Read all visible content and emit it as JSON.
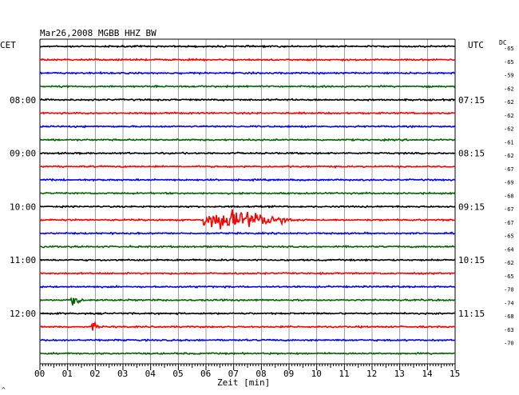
{
  "header": {
    "title": "Mar26,2008   MGBB HHZ BW",
    "left_zone": "CET",
    "right_zone": "UTC",
    "dc_label": "DC"
  },
  "footer": {
    "xlabel": "Zeit [min]",
    "corner_mark": "^"
  },
  "colors": {
    "black": "#000000",
    "red": "#ff0000",
    "blue": "#0000ff",
    "green": "#006400",
    "grid": "#808080",
    "frame": "#000000"
  },
  "chart_data": {
    "type": "line",
    "title": "Mar26,2008   MGBB HHZ BW",
    "xlabel": "Zeit [min]",
    "xlim": [
      0,
      15
    ],
    "x_ticks": [
      "00",
      "01",
      "02",
      "03",
      "04",
      "05",
      "06",
      "07",
      "08",
      "09",
      "10",
      "11",
      "12",
      "13",
      "14",
      "15"
    ],
    "grid": true,
    "trace_color_cycle": [
      "black",
      "red",
      "blue",
      "green"
    ],
    "rows": 24,
    "left_time_labels": [
      {
        "row": 4,
        "label": "08:00"
      },
      {
        "row": 8,
        "label": "09:00"
      },
      {
        "row": 12,
        "label": "10:00"
      },
      {
        "row": 16,
        "label": "11:00"
      },
      {
        "row": 20,
        "label": "12:00"
      }
    ],
    "right_time_labels": [
      {
        "row": 4,
        "label": "07:15"
      },
      {
        "row": 8,
        "label": "08:15"
      },
      {
        "row": 12,
        "label": "09:15"
      },
      {
        "row": 16,
        "label": "10:15"
      },
      {
        "row": 20,
        "label": "11:15"
      }
    ],
    "dc_values": [
      -65,
      -65,
      -59,
      -62,
      -62,
      -62,
      -62,
      -61,
      -62,
      -67,
      -69,
      -68,
      -67,
      -67,
      -65,
      -64,
      -62,
      -65,
      -70,
      -74,
      -68,
      -63,
      -70
    ],
    "events": [
      {
        "row": 13,
        "start_min": 5.9,
        "peak_min": 7.0,
        "end_min": 9.5,
        "amplitude": 1.0
      },
      {
        "row": 19,
        "start_min": 1.1,
        "peak_min": 1.35,
        "end_min": 1.6,
        "amplitude": 0.6
      },
      {
        "row": 21,
        "start_min": 1.85,
        "peak_min": 2.0,
        "end_min": 2.2,
        "amplitude": 0.35
      }
    ]
  }
}
